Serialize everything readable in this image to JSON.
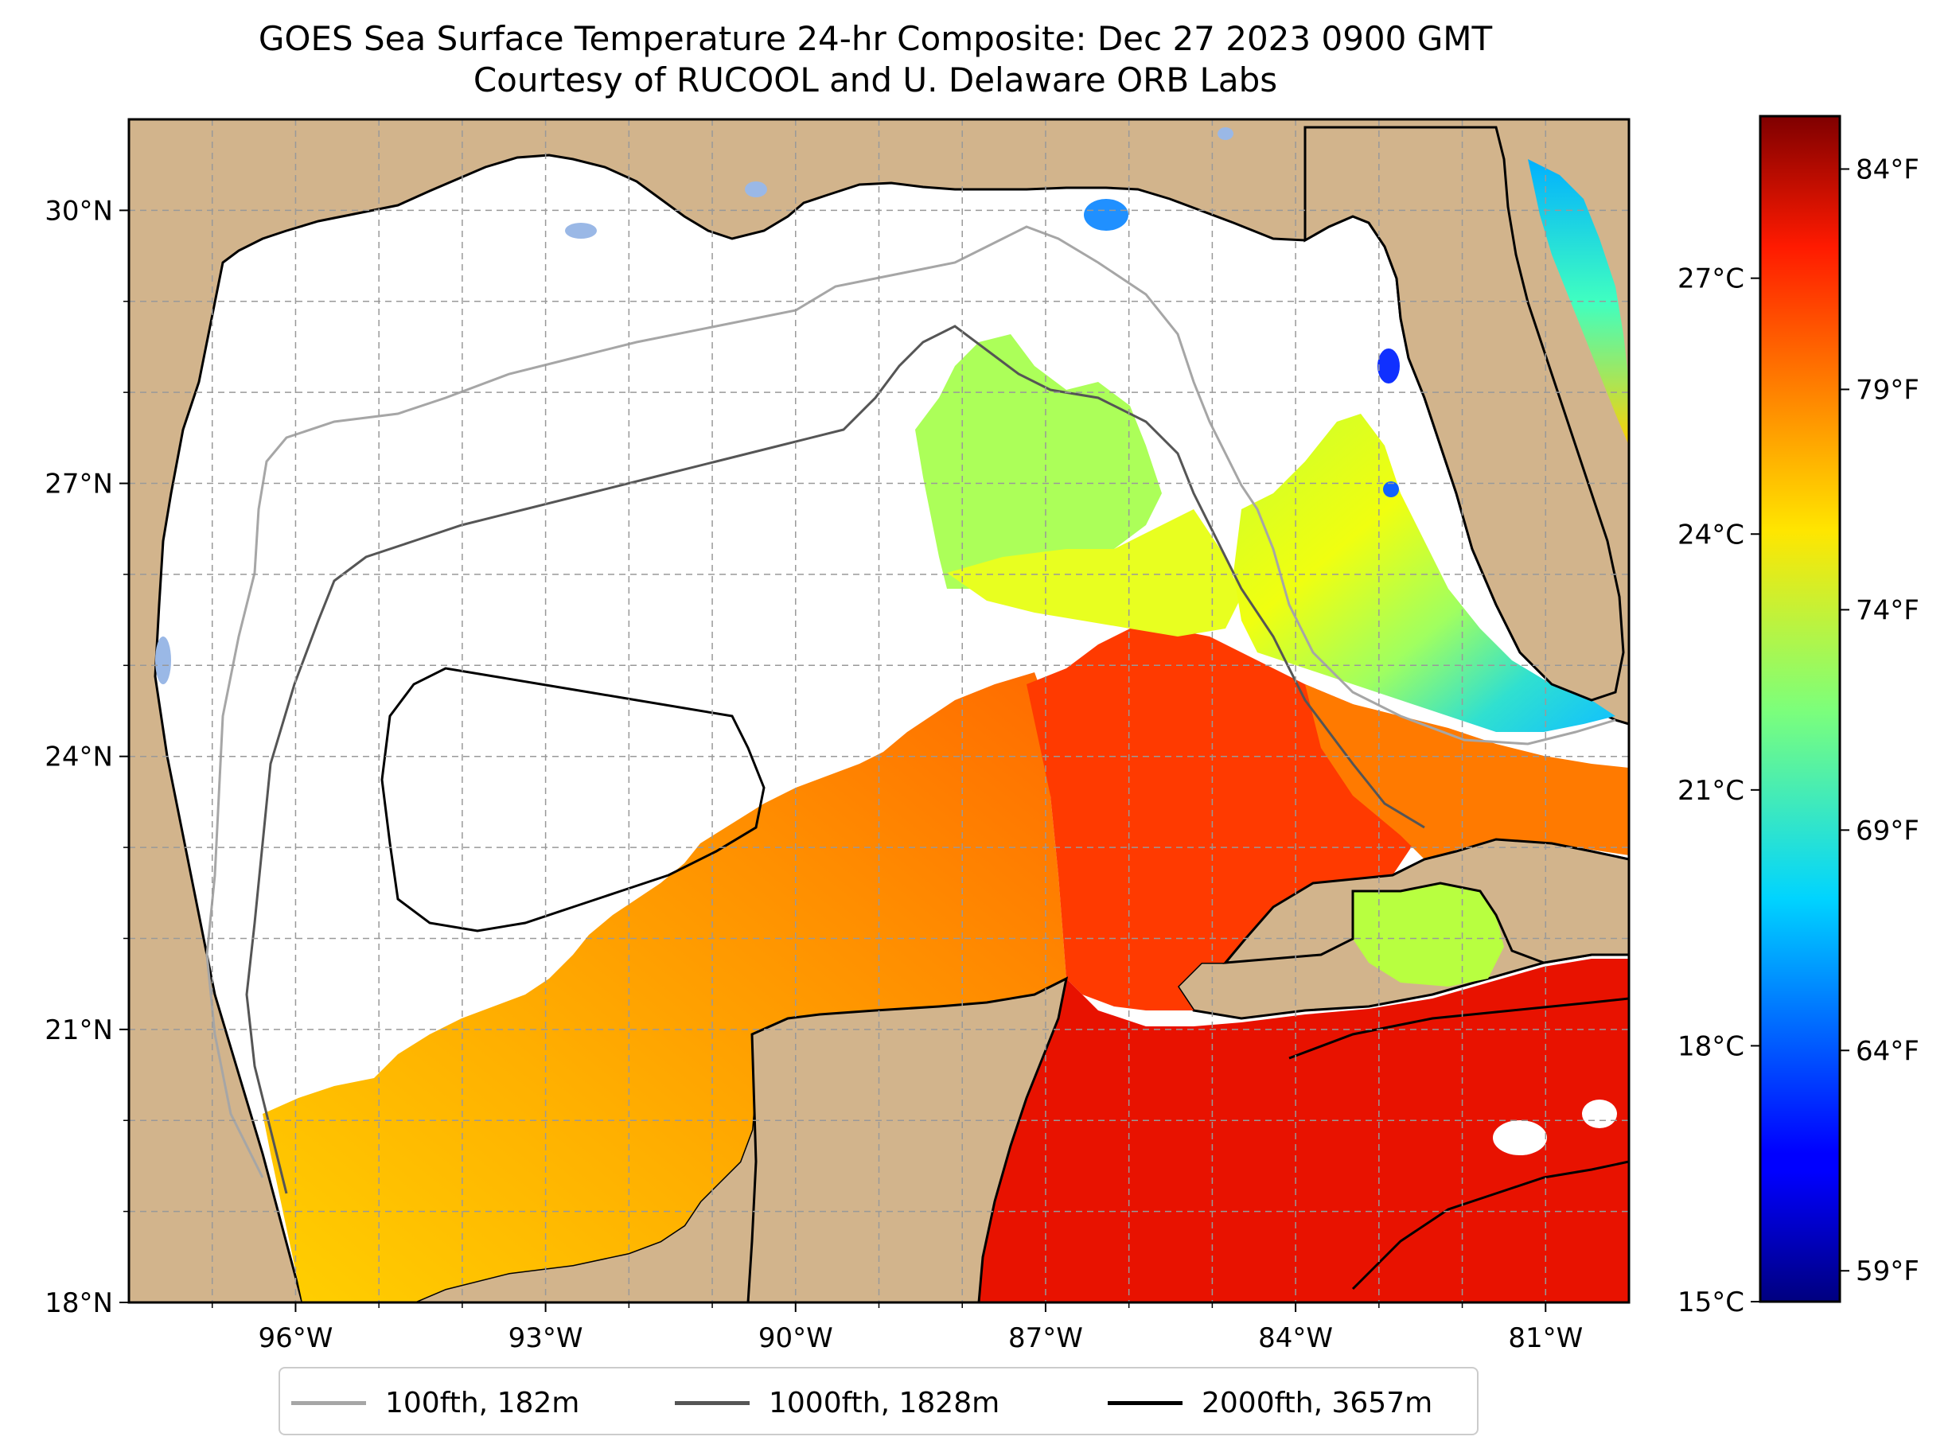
{
  "title": {
    "line1": "GOES Sea Surface Temperature 24-hr Composite: Dec 27 2023 0900 GMT",
    "line2": "Courtesy of RUCOOL and U. Delaware ORB Labs"
  },
  "map": {
    "lon_range": [
      -98,
      -80
    ],
    "lat_range": [
      18,
      31
    ],
    "lon_ticks": [
      {
        "value": -96,
        "label": "96°W"
      },
      {
        "value": -93,
        "label": "93°W"
      },
      {
        "value": -90,
        "label": "90°W"
      },
      {
        "value": -87,
        "label": "87°W"
      },
      {
        "value": -84,
        "label": "84°W"
      },
      {
        "value": -81,
        "label": "81°W"
      }
    ],
    "lat_ticks": [
      {
        "value": 30,
        "label": "30°N"
      },
      {
        "value": 27,
        "label": "27°N"
      },
      {
        "value": 24,
        "label": "24°N"
      },
      {
        "value": 21,
        "label": "21°N"
      },
      {
        "value": 18,
        "label": "18°N"
      }
    ],
    "colors": {
      "land": "#d2b48c",
      "water_nodata": "#ffffff",
      "lakes": "#9ab8e6",
      "grid": "#999999"
    }
  },
  "colorbar": {
    "colormap": "jet",
    "celsius_ticks": [
      "27°C",
      "24°C",
      "21°C",
      "18°C",
      "15°C"
    ],
    "fahrenheit_ticks": [
      "84°F",
      "79°F",
      "74°F",
      "69°F",
      "64°F",
      "59°F"
    ]
  },
  "legend": {
    "items": [
      {
        "label": "100fth, 182m",
        "color": "#a6a6a6"
      },
      {
        "label": "1000fth, 1828m",
        "color": "#555555"
      },
      {
        "label": "2000fth, 3657m",
        "color": "#000000"
      }
    ]
  }
}
